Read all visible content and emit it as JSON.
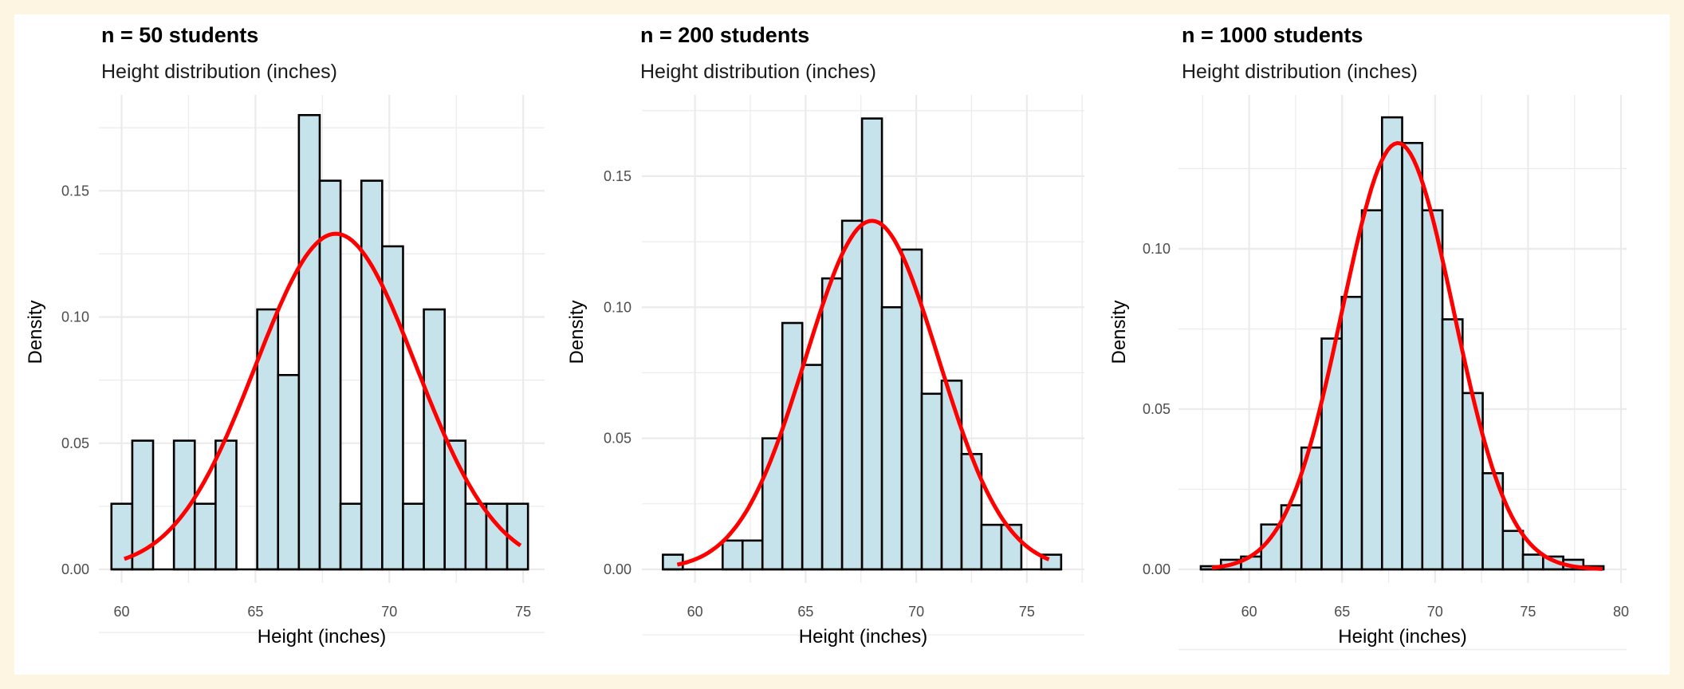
{
  "chart_data": [
    {
      "type": "bar",
      "title": "n = 50 students",
      "subtitle": "Height distribution (inches)",
      "xlabel": "Height (inches)",
      "ylabel": "Density",
      "xlim": [
        59.15,
        75.8
      ],
      "ylim": [
        0,
        0.188
      ],
      "xticks": [
        60,
        65,
        70,
        75
      ],
      "xtick_labels": [
        "60",
        "65",
        "70",
        "75"
      ],
      "yticks": [
        0,
        0.05,
        0.1,
        0.15
      ],
      "ytick_labels": [
        "0.00",
        "0.05",
        "0.10",
        "0.15"
      ],
      "grid": true,
      "bin_start": 59.62,
      "bin_width": 0.778,
      "values": [
        0.026,
        0.051,
        0,
        0.051,
        0.026,
        0.051,
        0,
        0.103,
        0.077,
        0.18,
        0.154,
        0.026,
        0.154,
        0.128,
        0.026,
        0.103,
        0.051,
        0.026,
        0.026,
        0.026
      ],
      "curve": {
        "type": "normal",
        "mean": 68.0,
        "sd": 3.0,
        "x_range": [
          60.1,
          74.9
        ]
      }
    },
    {
      "type": "bar",
      "title": "n = 200 students",
      "subtitle": "Height distribution (inches)",
      "xlabel": "Height (inches)",
      "ylabel": "Density",
      "xlim": [
        57.6,
        77.6
      ],
      "ylim": [
        0,
        0.181
      ],
      "xticks": [
        60,
        65,
        70,
        75
      ],
      "xtick_labels": [
        "60",
        "65",
        "70",
        "75"
      ],
      "yticks": [
        0,
        0.05,
        0.1,
        0.15
      ],
      "ytick_labels": [
        "0.00",
        "0.05",
        "0.10",
        "0.15"
      ],
      "grid": true,
      "bin_start": 58.55,
      "bin_width": 0.9,
      "values": [
        0.0056,
        0,
        0,
        0.011,
        0.011,
        0.05,
        0.094,
        0.078,
        0.111,
        0.133,
        0.172,
        0.1,
        0.122,
        0.067,
        0.072,
        0.044,
        0.017,
        0.017,
        0,
        0.0056
      ],
      "curve": {
        "type": "normal",
        "mean": 68.0,
        "sd": 3.0,
        "x_range": [
          59.2,
          76.0
        ]
      }
    },
    {
      "type": "bar",
      "title": "n = 1000 students",
      "subtitle": "Height distribution (inches)",
      "xlabel": "Height (inches)",
      "ylabel": "Density",
      "xlim": [
        56.2,
        80.3
      ],
      "ylim": [
        0,
        0.148
      ],
      "xticks": [
        60,
        65,
        70,
        75,
        80
      ],
      "xtick_labels": [
        "60",
        "65",
        "70",
        "75",
        "80"
      ],
      "yticks": [
        0,
        0.05,
        0.1
      ],
      "ytick_labels": [
        "0.00",
        "0.05",
        "0.10"
      ],
      "grid": true,
      "bin_start": 57.4,
      "bin_width": 1.083,
      "values": [
        0.001,
        0.003,
        0.004,
        0.014,
        0.02,
        0.038,
        0.072,
        0.085,
        0.112,
        0.141,
        0.133,
        0.112,
        0.078,
        0.055,
        0.03,
        0.012,
        0.0046,
        0.004,
        0.003,
        0.001
      ],
      "curve": {
        "type": "normal",
        "mean": 68.0,
        "sd": 3.0,
        "x_range": [
          58.0,
          79.0
        ]
      }
    }
  ],
  "colors": {
    "bar_fill": "#c6e3ec",
    "bar_stroke": "#000000",
    "curve": "#ff0000",
    "grid": "#ebebeb",
    "background": "#fdf5e2"
  }
}
